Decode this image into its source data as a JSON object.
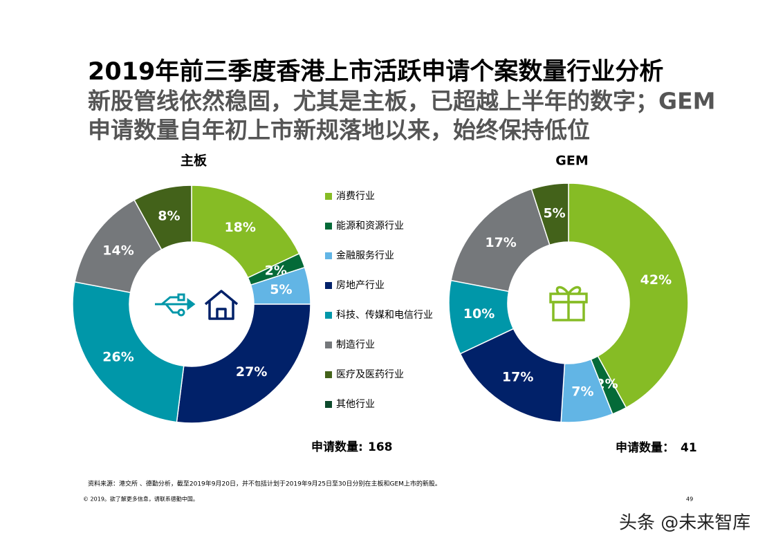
{
  "title": "2019年前三季度香港上市活跃申请个案数量行业分析",
  "subtitle_lines": [
    "新股管线依然稳固，尤其是主板，已超越上半年的数字；GEM",
    "申请数量自年初上市新规落地以来，始终保持低位"
  ],
  "legend": {
    "items": [
      {
        "name": "消费行业",
        "color": "#86bc25"
      },
      {
        "name": "能源和资源行业",
        "color": "#046a38"
      },
      {
        "name": "金融服务行业",
        "color": "#62b5e5"
      },
      {
        "name": "房地产行业",
        "color": "#012169"
      },
      {
        "name": "科技、传媒和电信行业",
        "color": "#0097a9"
      },
      {
        "name": "制造行业",
        "color": "#75787b"
      },
      {
        "name": "医疗及医药行业",
        "color": "#43621a"
      },
      {
        "name": "其他行业",
        "color": "#0d4a2c"
      }
    ]
  },
  "chart_data": [
    {
      "type": "donut",
      "title": "主板",
      "values": [
        18,
        2,
        5,
        27,
        26,
        14,
        8,
        null
      ],
      "value_labels": [
        "18%",
        "2%",
        "5%",
        "27%",
        "26%",
        "14%",
        "8%",
        null
      ],
      "total_label": "申请数量:",
      "total": "168"
    },
    {
      "type": "donut",
      "title": "GEM",
      "values": [
        42,
        2,
        7,
        17,
        10,
        17,
        5,
        null
      ],
      "value_labels": [
        "42%",
        "2%",
        "7%",
        "17%",
        "10%",
        "17%",
        "5%",
        null
      ],
      "total_label": "申请数量：",
      "total": "41"
    }
  ],
  "footnote": "资料来源：港交所 、德勤分析，截至2019年9月20日，并不包括计划于2019年9月25日至30日分别在主板和GEM上市的新股。",
  "copyright": "© 2019。欲了解更多信息，请联系德勤中国。",
  "page_number": "49",
  "watermark": "头条 @未来智库"
}
